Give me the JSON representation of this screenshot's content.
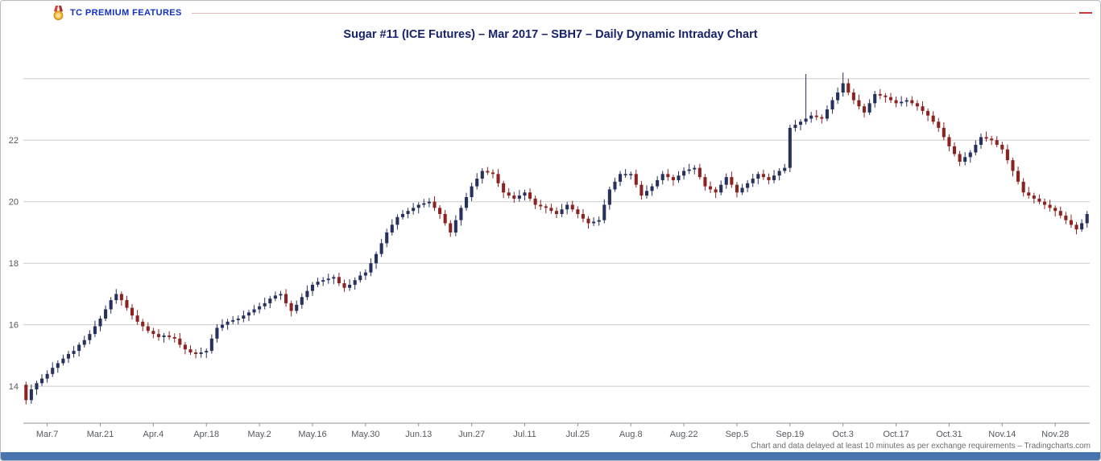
{
  "header": {
    "brand": "TC PREMIUM FEATURES"
  },
  "footer": {
    "disclaimer": "Chart and data delayed at least 10 minutes as per exchange requirements – Tradingcharts.com"
  },
  "colors": {
    "up": "#26315e",
    "down": "#8b2320",
    "grid": "#cccccc",
    "axis": "#8f9398",
    "tick_text": "#55595e",
    "title_navy": "#17226d",
    "brand_blue": "#1330c4",
    "bottom_bar": "#4a74ae",
    "header_rule": "#debbbb",
    "header_rule_end": "#c23b3b"
  },
  "chart_data": {
    "type": "candlestick",
    "title": "Sugar #11 (ICE Futures) – Mar 2017 – SBH7 – Daily Dynamic Intraday Chart",
    "xlabel": "",
    "ylabel": "",
    "y_ticks": [
      14,
      16,
      18,
      20,
      22
    ],
    "y_grid_extra": [
      24
    ],
    "ylim": [
      12.8,
      24.7
    ],
    "grid": true,
    "legend": "none",
    "x_tick_labels": [
      "Mar.7",
      "Mar.21",
      "Apr.4",
      "Apr.18",
      "May.2",
      "May.16",
      "May.30",
      "Jun.13",
      "Jun.27",
      "Jul.11",
      "Jul.25",
      "Aug.8",
      "Aug.22",
      "Sep.5",
      "Sep.19",
      "Oct.3",
      "Oct.17",
      "Oct.31",
      "Nov.14",
      "Nov.28"
    ],
    "x_tick_indices": [
      4,
      14,
      24,
      34,
      44,
      54,
      64,
      74,
      84,
      94,
      104,
      114,
      124,
      134,
      144,
      154,
      164,
      174,
      184,
      194
    ],
    "candles": [
      [
        14.05,
        14.15,
        13.41,
        13.55
      ],
      [
        13.55,
        14.06,
        13.43,
        13.9
      ],
      [
        13.9,
        14.18,
        13.72,
        14.1
      ],
      [
        14.1,
        14.39,
        14.01,
        14.25
      ],
      [
        14.25,
        14.52,
        14.12,
        14.4
      ],
      [
        14.4,
        14.78,
        14.3,
        14.6
      ],
      [
        14.6,
        14.84,
        14.44,
        14.75
      ],
      [
        14.75,
        15.03,
        14.67,
        14.9
      ],
      [
        14.9,
        15.15,
        14.76,
        15.05
      ],
      [
        15.05,
        15.31,
        14.93,
        15.15
      ],
      [
        15.15,
        15.43,
        14.97,
        15.35
      ],
      [
        15.35,
        15.64,
        15.26,
        15.5
      ],
      [
        15.5,
        15.82,
        15.37,
        15.7
      ],
      [
        15.7,
        16.13,
        15.6,
        15.95
      ],
      [
        15.95,
        16.29,
        15.79,
        16.2
      ],
      [
        16.2,
        16.63,
        16.12,
        16.5
      ],
      [
        16.5,
        16.9,
        16.36,
        16.8
      ],
      [
        16.8,
        17.16,
        16.68,
        17.0
      ],
      [
        17.0,
        17.08,
        16.62,
        16.8
      ],
      [
        16.8,
        16.94,
        16.46,
        16.55
      ],
      [
        16.55,
        16.67,
        16.17,
        16.3
      ],
      [
        16.3,
        16.48,
        16.0,
        16.1
      ],
      [
        16.1,
        16.19,
        15.79,
        15.95
      ],
      [
        15.95,
        16.08,
        15.72,
        15.8
      ],
      [
        15.8,
        15.9,
        15.56,
        15.7
      ],
      [
        15.7,
        15.86,
        15.48,
        15.6
      ],
      [
        15.6,
        15.73,
        15.42,
        15.65
      ],
      [
        15.65,
        15.79,
        15.51,
        15.6
      ],
      [
        15.6,
        15.72,
        15.42,
        15.55
      ],
      [
        15.55,
        15.73,
        15.25,
        15.35
      ],
      [
        15.35,
        15.44,
        15.04,
        15.2
      ],
      [
        15.2,
        15.33,
        15.02,
        15.1
      ],
      [
        15.1,
        15.2,
        14.91,
        15.05
      ],
      [
        15.05,
        15.26,
        14.93,
        15.1
      ],
      [
        15.1,
        15.23,
        14.92,
        15.15
      ],
      [
        15.15,
        15.69,
        15.06,
        15.55
      ],
      [
        15.55,
        16.02,
        15.42,
        15.9
      ],
      [
        15.9,
        16.18,
        15.8,
        16.0
      ],
      [
        16.0,
        16.19,
        15.84,
        16.1
      ],
      [
        16.1,
        16.28,
        16.02,
        16.15
      ],
      [
        16.15,
        16.3,
        16.01,
        16.2
      ],
      [
        16.2,
        16.46,
        16.08,
        16.3
      ],
      [
        16.3,
        16.48,
        16.12,
        16.4
      ],
      [
        16.4,
        16.64,
        16.31,
        16.5
      ],
      [
        16.5,
        16.72,
        16.37,
        16.6
      ],
      [
        16.6,
        16.88,
        16.5,
        16.7
      ],
      [
        16.7,
        16.94,
        16.54,
        16.85
      ],
      [
        16.85,
        17.08,
        16.77,
        16.95
      ],
      [
        16.95,
        17.1,
        16.81,
        17.0
      ],
      [
        17.0,
        17.16,
        16.58,
        16.7
      ],
      [
        16.7,
        16.78,
        16.27,
        16.45
      ],
      [
        16.45,
        16.79,
        16.36,
        16.65
      ],
      [
        16.65,
        17.02,
        16.52,
        16.9
      ],
      [
        16.9,
        17.28,
        16.8,
        17.1
      ],
      [
        17.1,
        17.39,
        16.94,
        17.3
      ],
      [
        17.3,
        17.53,
        17.22,
        17.4
      ],
      [
        17.4,
        17.55,
        17.26,
        17.45
      ],
      [
        17.45,
        17.66,
        17.33,
        17.5
      ],
      [
        17.5,
        17.63,
        17.32,
        17.55
      ],
      [
        17.55,
        17.69,
        17.26,
        17.35
      ],
      [
        17.35,
        17.47,
        17.07,
        17.2
      ],
      [
        17.2,
        17.48,
        17.1,
        17.3
      ],
      [
        17.3,
        17.54,
        17.14,
        17.45
      ],
      [
        17.45,
        17.73,
        17.37,
        17.6
      ],
      [
        17.6,
        17.8,
        17.46,
        17.7
      ],
      [
        17.7,
        18.16,
        17.58,
        18.0
      ],
      [
        18.0,
        18.38,
        17.82,
        18.3
      ],
      [
        18.3,
        18.79,
        18.21,
        18.65
      ],
      [
        18.65,
        19.12,
        18.52,
        19.0
      ],
      [
        19.0,
        19.43,
        18.9,
        19.25
      ],
      [
        19.25,
        19.59,
        19.09,
        19.5
      ],
      [
        19.5,
        19.73,
        19.42,
        19.6
      ],
      [
        19.6,
        19.8,
        19.46,
        19.7
      ],
      [
        19.7,
        19.96,
        19.58,
        19.8
      ],
      [
        19.8,
        19.98,
        19.62,
        19.9
      ],
      [
        19.9,
        20.09,
        19.81,
        19.95
      ],
      [
        19.95,
        20.12,
        19.82,
        20.0
      ],
      [
        20.0,
        20.18,
        19.7,
        19.8
      ],
      [
        19.8,
        19.89,
        19.44,
        19.6
      ],
      [
        19.6,
        19.73,
        19.22,
        19.3
      ],
      [
        19.3,
        19.4,
        18.86,
        19.0
      ],
      [
        19.0,
        19.56,
        18.88,
        19.4
      ],
      [
        19.4,
        19.88,
        19.22,
        19.8
      ],
      [
        19.8,
        20.29,
        19.71,
        20.15
      ],
      [
        20.15,
        20.62,
        20.02,
        20.5
      ],
      [
        20.5,
        20.93,
        20.4,
        20.75
      ],
      [
        20.75,
        21.09,
        20.59,
        21.0
      ],
      [
        21.0,
        21.13,
        20.87,
        20.95
      ],
      [
        20.95,
        21.05,
        20.76,
        20.9
      ],
      [
        20.9,
        21.06,
        20.48,
        20.6
      ],
      [
        20.6,
        20.68,
        20.12,
        20.3
      ],
      [
        20.3,
        20.44,
        20.11,
        20.2
      ],
      [
        20.2,
        20.32,
        19.97,
        20.1
      ],
      [
        20.1,
        20.38,
        20.0,
        20.2
      ],
      [
        20.2,
        20.39,
        20.04,
        20.3
      ],
      [
        20.3,
        20.43,
        20.02,
        20.1
      ],
      [
        20.1,
        20.2,
        19.76,
        19.9
      ],
      [
        19.9,
        20.06,
        19.73,
        19.85
      ],
      [
        19.85,
        19.93,
        19.62,
        19.8
      ],
      [
        19.8,
        19.94,
        19.61,
        19.7
      ],
      [
        19.7,
        19.82,
        19.47,
        19.6
      ],
      [
        19.6,
        19.93,
        19.5,
        19.75
      ],
      [
        19.75,
        19.99,
        19.59,
        19.9
      ],
      [
        19.9,
        20.03,
        19.67,
        19.75
      ],
      [
        19.75,
        19.85,
        19.46,
        19.6
      ],
      [
        19.6,
        19.76,
        19.33,
        19.45
      ],
      [
        19.45,
        19.53,
        19.12,
        19.3
      ],
      [
        19.3,
        19.49,
        19.21,
        19.35
      ],
      [
        19.35,
        19.52,
        19.22,
        19.4
      ],
      [
        19.4,
        20.08,
        19.3,
        19.9
      ],
      [
        19.9,
        20.49,
        19.74,
        20.4
      ],
      [
        20.4,
        20.78,
        20.32,
        20.65
      ],
      [
        20.65,
        21.0,
        20.51,
        20.9
      ],
      [
        20.9,
        21.06,
        20.78,
        20.9
      ],
      [
        20.9,
        20.98,
        20.72,
        20.9
      ],
      [
        20.9,
        21.04,
        20.46,
        20.55
      ],
      [
        20.55,
        20.67,
        20.07,
        20.2
      ],
      [
        20.2,
        20.53,
        20.1,
        20.35
      ],
      [
        20.35,
        20.59,
        20.19,
        20.5
      ],
      [
        20.5,
        20.83,
        20.42,
        20.7
      ],
      [
        20.7,
        21.0,
        20.56,
        20.9
      ],
      [
        20.9,
        21.06,
        20.68,
        20.8
      ],
      [
        20.8,
        20.88,
        20.52,
        20.7
      ],
      [
        20.7,
        20.99,
        20.61,
        20.85
      ],
      [
        20.85,
        21.12,
        20.72,
        21.0
      ],
      [
        21.0,
        21.23,
        20.9,
        21.05
      ],
      [
        21.05,
        21.19,
        20.89,
        21.1
      ],
      [
        21.1,
        21.23,
        20.72,
        20.8
      ],
      [
        20.8,
        20.9,
        20.36,
        20.5
      ],
      [
        20.5,
        20.66,
        20.28,
        20.4
      ],
      [
        20.4,
        20.48,
        20.12,
        20.3
      ],
      [
        20.3,
        20.69,
        20.21,
        20.55
      ],
      [
        20.55,
        20.92,
        20.42,
        20.8
      ],
      [
        20.8,
        20.98,
        20.45,
        20.55
      ],
      [
        20.55,
        20.64,
        20.14,
        20.3
      ],
      [
        20.3,
        20.58,
        20.22,
        20.45
      ],
      [
        20.45,
        20.7,
        20.31,
        20.6
      ],
      [
        20.6,
        20.91,
        20.48,
        20.75
      ],
      [
        20.75,
        20.98,
        20.57,
        20.9
      ],
      [
        20.9,
        21.04,
        20.71,
        20.8
      ],
      [
        20.8,
        20.92,
        20.57,
        20.7
      ],
      [
        20.7,
        21.03,
        20.6,
        20.85
      ],
      [
        20.85,
        21.09,
        20.69,
        21.0
      ],
      [
        21.0,
        21.23,
        20.92,
        21.1
      ],
      [
        21.1,
        22.5,
        20.96,
        22.4
      ],
      [
        22.4,
        22.66,
        22.28,
        22.5
      ],
      [
        22.5,
        22.68,
        22.32,
        22.6
      ],
      [
        22.6,
        24.15,
        22.51,
        22.7
      ],
      [
        22.7,
        22.92,
        22.57,
        22.8
      ],
      [
        22.8,
        22.98,
        22.65,
        22.75
      ],
      [
        22.75,
        22.84,
        22.54,
        22.7
      ],
      [
        22.7,
        23.13,
        22.62,
        23.0
      ],
      [
        23.0,
        23.4,
        22.86,
        23.3
      ],
      [
        23.3,
        23.71,
        23.18,
        23.55
      ],
      [
        23.55,
        24.2,
        23.42,
        23.85
      ],
      [
        23.85,
        23.99,
        23.46,
        23.55
      ],
      [
        23.55,
        23.67,
        23.17,
        23.3
      ],
      [
        23.3,
        23.48,
        23.0,
        23.1
      ],
      [
        23.1,
        23.19,
        22.74,
        22.9
      ],
      [
        22.9,
        23.33,
        22.82,
        23.2
      ],
      [
        23.2,
        23.6,
        23.06,
        23.5
      ],
      [
        23.5,
        23.66,
        23.33,
        23.45
      ],
      [
        23.45,
        23.53,
        23.22,
        23.4
      ],
      [
        23.4,
        23.54,
        23.21,
        23.3
      ],
      [
        23.3,
        23.42,
        23.07,
        23.2
      ],
      [
        23.2,
        23.43,
        23.1,
        23.25
      ],
      [
        23.25,
        23.39,
        23.09,
        23.3
      ],
      [
        23.3,
        23.43,
        23.12,
        23.2
      ],
      [
        23.2,
        23.3,
        22.96,
        23.1
      ],
      [
        23.1,
        23.26,
        22.83,
        22.95
      ],
      [
        22.95,
        23.03,
        22.62,
        22.8
      ],
      [
        22.8,
        22.94,
        22.51,
        22.6
      ],
      [
        22.6,
        22.72,
        22.27,
        22.4
      ],
      [
        22.4,
        22.58,
        22.0,
        22.1
      ],
      [
        22.1,
        22.19,
        21.64,
        21.8
      ],
      [
        21.8,
        21.93,
        21.47,
        21.55
      ],
      [
        21.55,
        21.65,
        21.16,
        21.3
      ],
      [
        21.3,
        21.61,
        21.18,
        21.45
      ],
      [
        21.45,
        21.68,
        21.27,
        21.6
      ],
      [
        21.6,
        21.99,
        21.51,
        21.85
      ],
      [
        21.85,
        22.22,
        21.72,
        22.1
      ],
      [
        22.1,
        22.28,
        21.95,
        22.05
      ],
      [
        22.05,
        22.14,
        21.84,
        22.0
      ],
      [
        22.0,
        22.13,
        21.77,
        21.85
      ],
      [
        21.85,
        21.95,
        21.56,
        21.7
      ],
      [
        21.7,
        21.86,
        21.23,
        21.35
      ],
      [
        21.35,
        21.43,
        20.82,
        21.0
      ],
      [
        21.0,
        21.14,
        20.56,
        20.65
      ],
      [
        20.65,
        20.77,
        20.17,
        20.3
      ],
      [
        20.3,
        20.48,
        20.1,
        20.2
      ],
      [
        20.2,
        20.29,
        19.94,
        20.1
      ],
      [
        20.1,
        20.23,
        19.92,
        20.0
      ],
      [
        20.0,
        20.1,
        19.76,
        19.9
      ],
      [
        19.9,
        20.06,
        19.68,
        19.8
      ],
      [
        19.8,
        19.88,
        19.52,
        19.7
      ],
      [
        19.7,
        19.84,
        19.46,
        19.55
      ],
      [
        19.55,
        19.67,
        19.27,
        19.4
      ],
      [
        19.4,
        19.58,
        19.15,
        19.25
      ],
      [
        19.25,
        19.34,
        18.94,
        19.1
      ],
      [
        19.1,
        19.43,
        19.02,
        19.3
      ],
      [
        19.3,
        19.7,
        19.16,
        19.6
      ]
    ]
  }
}
